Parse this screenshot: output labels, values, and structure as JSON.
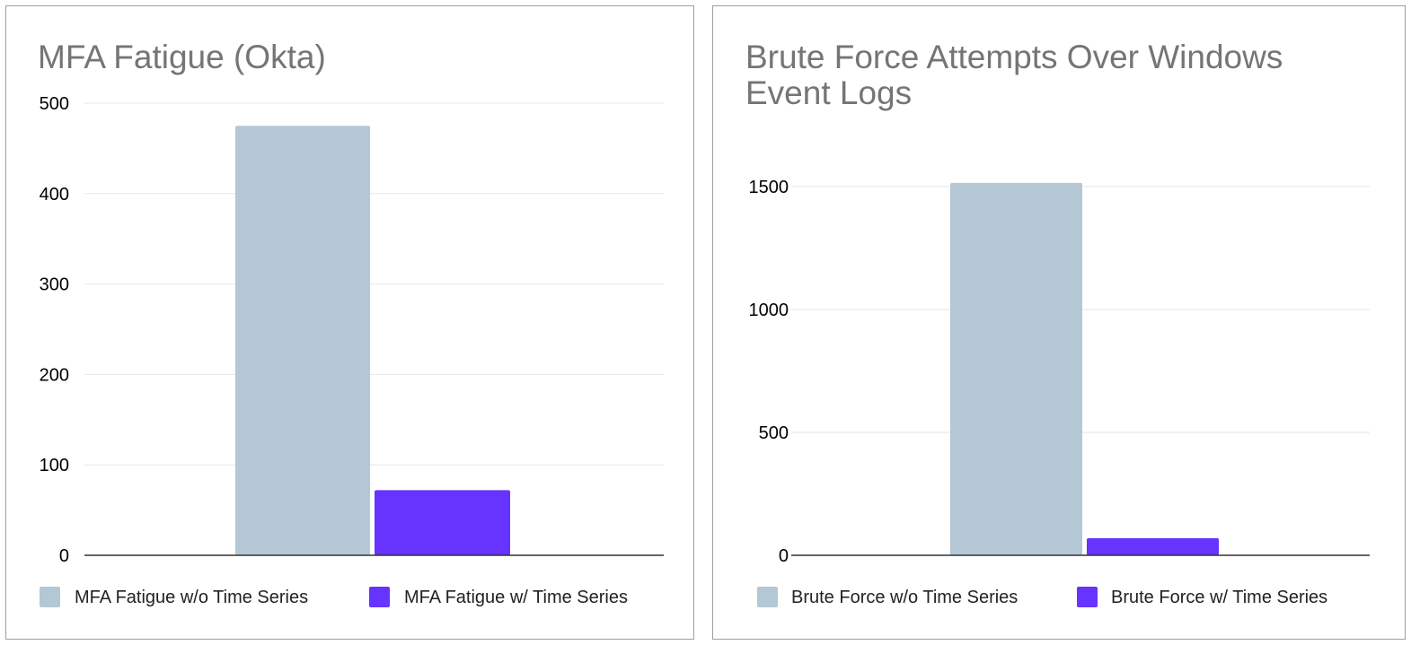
{
  "chart_data": [
    {
      "type": "bar",
      "title": "MFA Fatigue (Okta)",
      "categories": [
        ""
      ],
      "series": [
        {
          "name": "MFA Fatigue w/o Time Series",
          "values": [
            475
          ],
          "color": "#b3c7d4"
        },
        {
          "name": "MFA Fatigue w/ Time Series",
          "values": [
            72
          ],
          "color": "#6633ff"
        }
      ],
      "yticks": [
        0,
        100,
        200,
        300,
        400,
        500
      ],
      "ylim": [
        0,
        500
      ],
      "grid": true,
      "legend": "bottom"
    },
    {
      "type": "bar",
      "title": "Brute Force Attempts Over Windows\nEvent Logs",
      "categories": [
        ""
      ],
      "series": [
        {
          "name": "Brute Force w/o Time Series",
          "values": [
            1515
          ],
          "color": "#b3c7d4"
        },
        {
          "name": "Brute Force w/ Time Series",
          "values": [
            70
          ],
          "color": "#6633ff"
        }
      ],
      "yticks": [
        0,
        500,
        1000,
        1500
      ],
      "ylim": [
        0,
        1500
      ],
      "grid": true,
      "legend": "bottom"
    }
  ]
}
